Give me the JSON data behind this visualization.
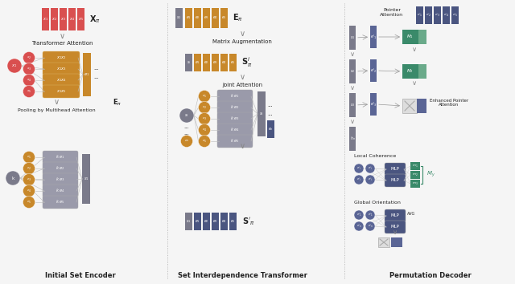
{
  "panel_titles": [
    "Initial Set Encoder",
    "Set Interdependence Transformer",
    "Permutation Decoder"
  ],
  "bg_color": "#f5f5f5",
  "colors": {
    "red": "#d94f4f",
    "orange": "#c8882a",
    "gray_dark": "#7a7a8a",
    "gray_med": "#9a9aaa",
    "blue_dark": "#4a5580",
    "blue_med": "#5a6595",
    "teal": "#3a8a6a",
    "teal_light": "#6aaa8a",
    "white": "#ffffff",
    "black": "#222222",
    "line_color": "#bbbbbb"
  }
}
